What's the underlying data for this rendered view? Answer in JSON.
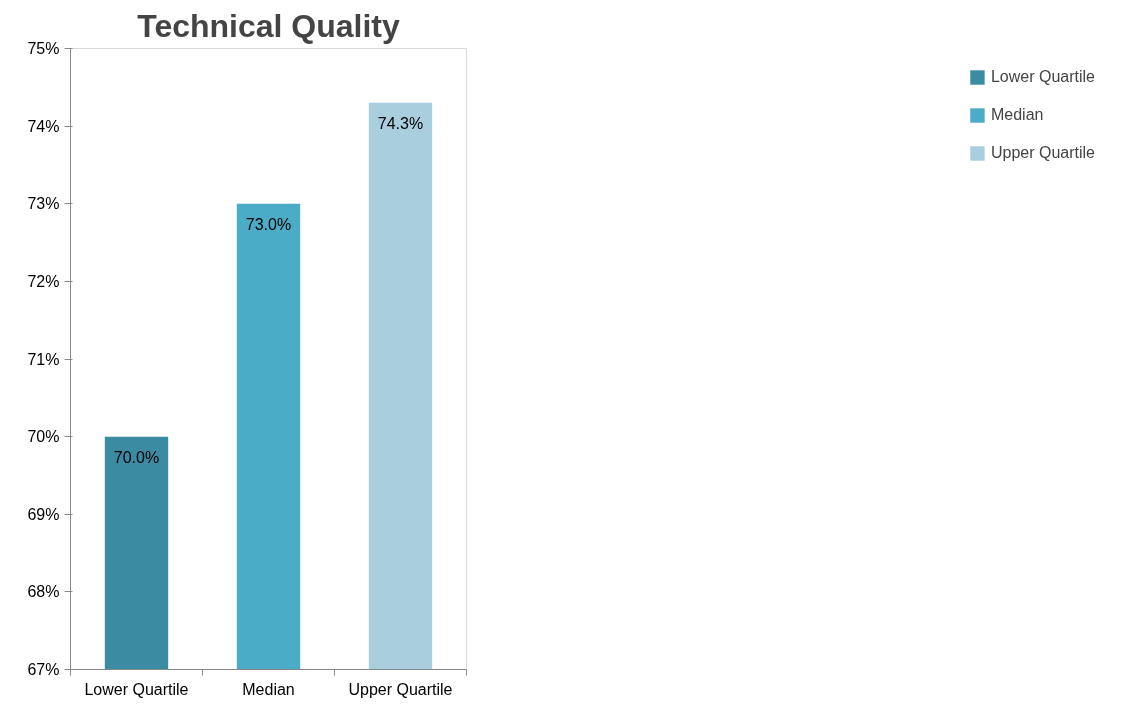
{
  "chart_data": {
    "type": "bar",
    "title": "Technical Quality",
    "categories": [
      "Lower Quartile",
      "Median",
      "Upper Quartile"
    ],
    "series": [
      {
        "name": "Lower Quartile",
        "color": "#3b8ca3",
        "values": [
          70.0,
          null,
          null
        ],
        "value_labels": [
          "70.0%",
          null,
          null
        ]
      },
      {
        "name": "Median",
        "color": "#4aacc6",
        "values": [
          null,
          73.0,
          null
        ],
        "value_labels": [
          null,
          "73.0%",
          null
        ]
      },
      {
        "name": "Upper Quartile",
        "color": "#a9cedd",
        "values": [
          null,
          null,
          74.3
        ],
        "value_labels": [
          null,
          null,
          "74.3%"
        ]
      }
    ],
    "ylim": [
      67,
      75
    ],
    "yticks": [
      {
        "value": 67,
        "label": "67%"
      },
      {
        "value": 68,
        "label": "68%"
      },
      {
        "value": 69,
        "label": "69%"
      },
      {
        "value": 70,
        "label": "70%"
      },
      {
        "value": 71,
        "label": "71%"
      },
      {
        "value": 72,
        "label": "72%"
      },
      {
        "value": 73,
        "label": "73%"
      },
      {
        "value": 74,
        "label": "74%"
      },
      {
        "value": 75,
        "label": "75%"
      }
    ],
    "grid": false,
    "legend": "right"
  }
}
